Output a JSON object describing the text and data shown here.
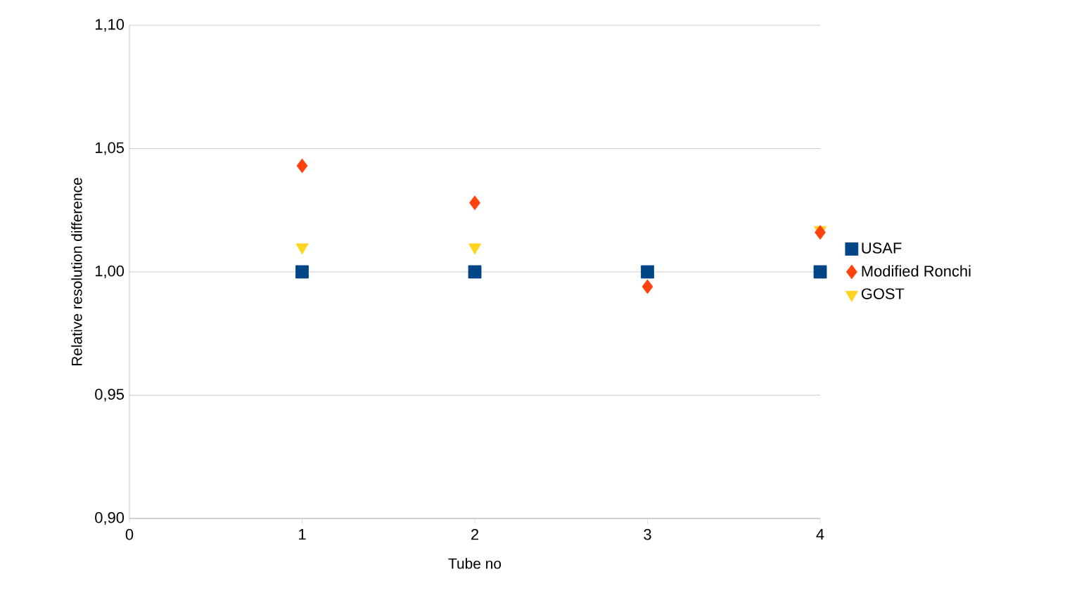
{
  "chart_data": {
    "type": "scatter",
    "xlabel": "Tube no",
    "ylabel": "Relative resolution difference",
    "x": [
      1,
      2,
      3,
      4
    ],
    "series": [
      {
        "name": "USAF",
        "color": "#004586",
        "marker": "square",
        "values": [
          1.0,
          1.0,
          1.0,
          1.0
        ]
      },
      {
        "name": "Modified Ronchi",
        "color": "#ff420e",
        "marker": "diamond",
        "values": [
          1.043,
          1.028,
          0.994,
          1.016
        ]
      },
      {
        "name": "GOST",
        "color": "#ffd320",
        "marker": "triangle",
        "values": [
          1.01,
          1.01,
          null,
          1.017
        ]
      }
    ],
    "xlim": [
      0,
      4
    ],
    "xticks": [
      0,
      1,
      2,
      3,
      4
    ],
    "ylim": [
      0.9,
      1.1
    ],
    "yticks": [
      {
        "value": 0.9,
        "label": "0,90"
      },
      {
        "value": 0.95,
        "label": "0,95"
      },
      {
        "value": 1.0,
        "label": "1,00"
      },
      {
        "value": 1.05,
        "label": "1,05"
      },
      {
        "value": 1.1,
        "label": "1,10"
      }
    ],
    "grid": "y",
    "legend": "right"
  }
}
